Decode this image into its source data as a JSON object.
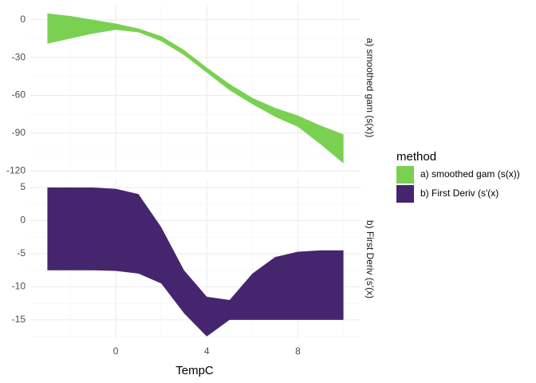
{
  "chart_data": {
    "type": "area",
    "xlabel": "TempC",
    "legend_title": "method",
    "x": [
      -3,
      -2,
      -1,
      0,
      1,
      2,
      3,
      4,
      5,
      6,
      7,
      8,
      9,
      10
    ],
    "xlim": [
      -3.75,
      10.75
    ],
    "xticks": [
      0,
      4,
      8
    ],
    "grid": true,
    "panels": [
      {
        "name": "a) smoothed gam (s(x))",
        "color": "#7ad151",
        "ylim": [
          -120.5,
          12.5
        ],
        "yticks": [
          0,
          -30,
          -60,
          -90,
          -120
        ],
        "upper": [
          5,
          3,
          0,
          -3,
          -7,
          -13,
          -24,
          -38,
          -51,
          -62,
          -70,
          -76,
          -84,
          -91
        ],
        "lower": [
          -19,
          -15,
          -11,
          -8,
          -10,
          -17,
          -28,
          -42,
          -56,
          -67,
          -77,
          -85,
          -99,
          -114
        ]
      },
      {
        "name": "b) First Deriv (s'(x)",
        "color": "#46256f",
        "ylim": [
          -17.9,
          6.2
        ],
        "yticks": [
          5,
          0,
          -5,
          -10,
          -15
        ],
        "upper": [
          5,
          5,
          5,
          4.8,
          4,
          -1,
          -7.5,
          -11.5,
          -12,
          -8,
          -5.5,
          -4.7,
          -4.5,
          -4.5
        ],
        "lower": [
          -7.5,
          -7.5,
          -7.5,
          -7.6,
          -8,
          -9.5,
          -14,
          -17.5,
          -15,
          -15,
          -15,
          -15,
          -15,
          -15
        ]
      }
    ]
  }
}
